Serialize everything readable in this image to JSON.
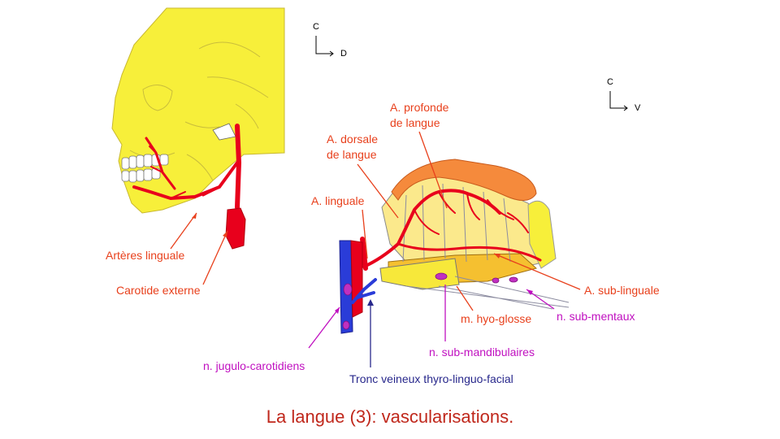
{
  "title": "La langue (3): vascularisations.",
  "orientation_skull": {
    "up": "C",
    "right": "D"
  },
  "orientation_tongue": {
    "up": "C",
    "right": "V"
  },
  "labels": {
    "arteres_linguale": "Artères linguale",
    "carotide_externe": "Carotide externe",
    "a_linguale": "A. linguale",
    "a_dorsale_1": "A. dorsale",
    "a_dorsale_2": "de langue",
    "a_profonde_1": "A. profonde",
    "a_profonde_2": "de langue",
    "a_sub_linguale": "A. sub-linguale",
    "m_hyo_glosse": "m. hyo-glosse",
    "n_sub_mentaux": "n. sub-mentaux",
    "n_sub_mandibulaires": "n. sub-mandibulaires",
    "n_jugulo_carotidiens": "n. jugulo-carotidiens",
    "tronc_veineux": "Tronc veineux thyro-linguo-facial"
  },
  "colors": {
    "artery": "#e8001c",
    "vein": "#2a3cd8",
    "node": "#c030c0",
    "skull": "#f7ef3a",
    "tongue": "#fbe98c",
    "muscle_top": "#f58a3c",
    "label_red": "#e8401c",
    "label_magenta": "#c010c0",
    "label_blue": "#28288c"
  }
}
